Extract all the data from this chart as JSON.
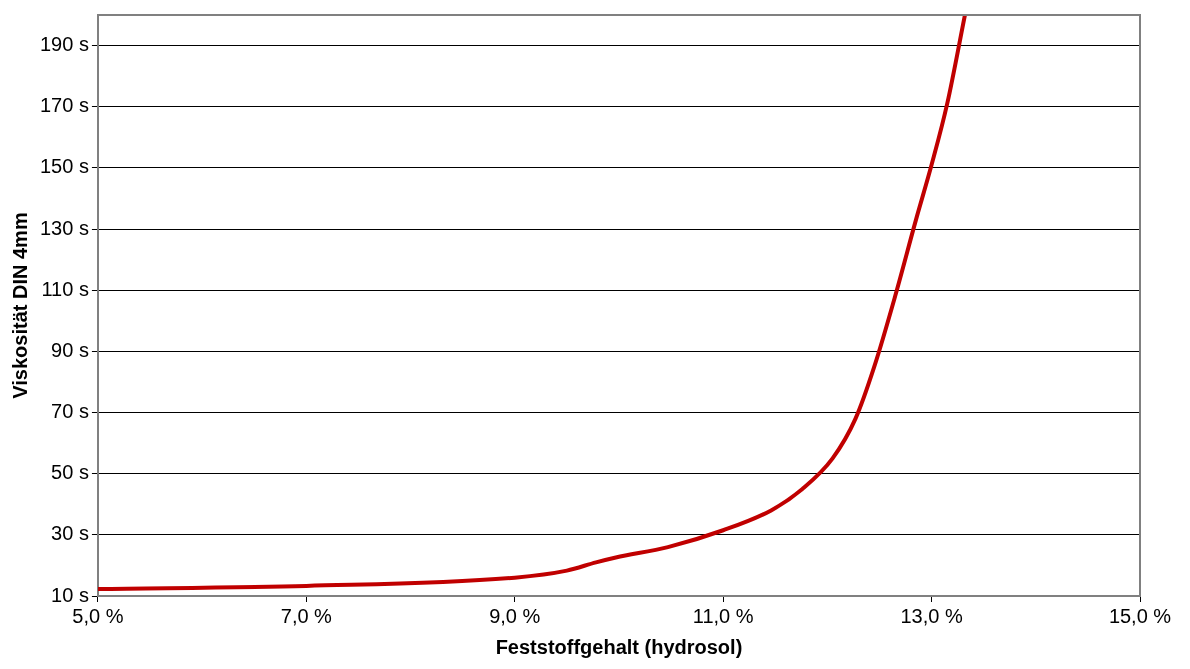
{
  "chart_data": {
    "type": "line",
    "xlabel": "Feststoffgehalt (hydrosol)",
    "ylabel": "Viskosität DIN 4mm",
    "x": [
      5.0,
      7.0,
      9.0,
      9.5,
      9.78,
      9.97,
      10.47,
      11.0,
      11.46,
      11.76,
      12.05,
      12.27,
      12.45,
      12.65,
      12.85,
      13.0,
      13.15,
      13.32
    ],
    "series": [
      {
        "color": "#c00000",
        "values": [
          12.3,
          13.3,
          16,
          18.3,
          21,
          22.6,
          26,
          31.5,
          38,
          45,
          55,
          68,
          85,
          108,
          133,
          151,
          171,
          200
        ]
      }
    ],
    "xlim": [
      5,
      15
    ],
    "xticks": [
      {
        "value": 5,
        "label": "5,0 %"
      },
      {
        "value": 7,
        "label": "7,0 %"
      },
      {
        "value": 9,
        "label": "9,0 %"
      },
      {
        "value": 11,
        "label": "11,0 %"
      },
      {
        "value": 13,
        "label": "13,0 %"
      },
      {
        "value": 15,
        "label": "15,0 %"
      }
    ],
    "ylim": [
      10,
      200
    ],
    "yticks": [
      {
        "value": 10,
        "label": "10 s"
      },
      {
        "value": 30,
        "label": "30 s"
      },
      {
        "value": 50,
        "label": "50 s"
      },
      {
        "value": 70,
        "label": "70 s"
      },
      {
        "value": 90,
        "label": "90 s"
      },
      {
        "value": 110,
        "label": "110 s"
      },
      {
        "value": 130,
        "label": "130 s"
      },
      {
        "value": 150,
        "label": "150 s"
      },
      {
        "value": 170,
        "label": "170 s"
      },
      {
        "value": 190,
        "label": "190 s"
      }
    ],
    "grid": "y",
    "legend": false,
    "marker": "none",
    "line_style": "solid"
  }
}
